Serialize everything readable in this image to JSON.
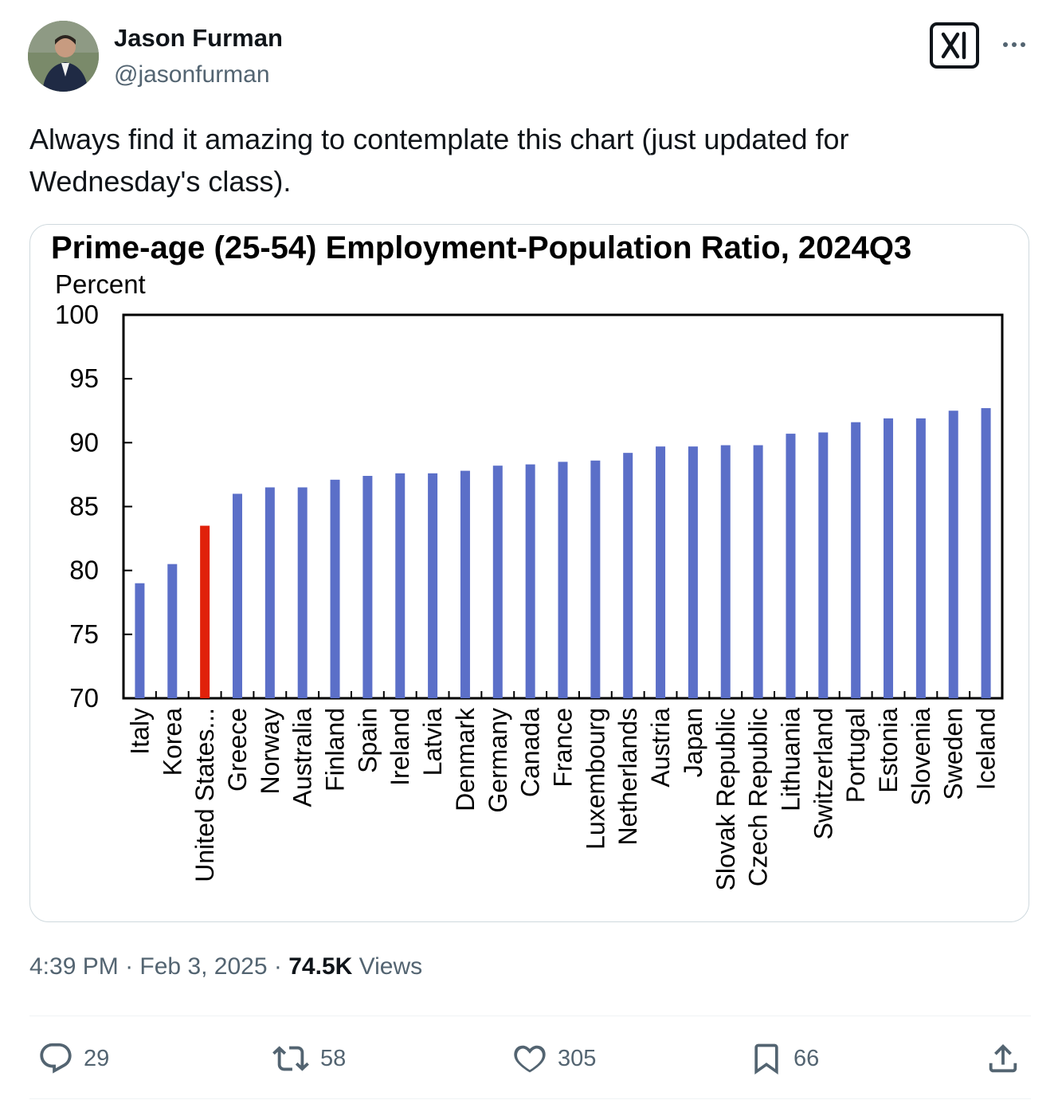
{
  "author": {
    "name": "Jason Furman",
    "handle": "@jasonfurman",
    "avatar_icon": "profile-photo"
  },
  "icons": {
    "grok": "grok-icon",
    "more": "more-icon",
    "reply": "reply-icon",
    "repost": "repost-icon",
    "like": "heart-icon",
    "bookmark": "bookmark-icon",
    "share": "share-icon"
  },
  "tweet": {
    "text": "Always find it amazing to contemplate this chart (just updated for Wednesday's  class).",
    "time": "4:39 PM",
    "date": "Feb 3, 2025",
    "separator": "·",
    "views": "74.5K",
    "views_label": "Views"
  },
  "actions": {
    "replies": "29",
    "reposts": "58",
    "likes": "305",
    "bookmarks": "66"
  },
  "colors": {
    "bar": "#5b6fc8",
    "highlight": "#e0210a",
    "muted": "#536471"
  },
  "chart_data": {
    "type": "bar",
    "title": "Prime-age (25-54) Employment-Population Ratio, 2024Q3",
    "ylabel": "Percent",
    "ylim": [
      70,
      100
    ],
    "yticks": [
      70,
      75,
      80,
      85,
      90,
      95,
      100
    ],
    "grid": false,
    "categories": [
      "Italy",
      "Korea",
      "United States...",
      "Greece",
      "Norway",
      "Australia",
      "Finland",
      "Spain",
      "Ireland",
      "Latvia",
      "Denmark",
      "Germany",
      "Canada",
      "France",
      "Luxembourg",
      "Netherlands",
      "Austria",
      "Japan",
      "Slovak Republic",
      "Czech Republic",
      "Lithuania",
      "Switzerland",
      "Portugal",
      "Estonia",
      "Slovenia",
      "Sweden",
      "Iceland"
    ],
    "values": [
      79.0,
      80.5,
      83.5,
      86.0,
      86.5,
      86.5,
      87.1,
      87.4,
      87.6,
      87.6,
      87.8,
      88.2,
      88.3,
      88.5,
      88.6,
      89.2,
      89.7,
      89.7,
      89.8,
      89.8,
      90.7,
      90.8,
      91.6,
      91.9,
      91.9,
      92.5,
      92.7
    ],
    "highlight_index": 2
  }
}
